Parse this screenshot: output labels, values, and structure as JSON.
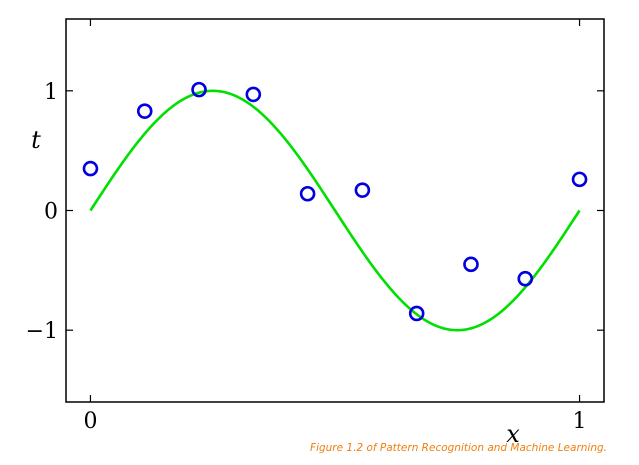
{
  "chart_data": {
    "type": "scatter",
    "title": "",
    "xlabel": "x",
    "ylabel": "t",
    "xlim": [
      -0.05,
      1.05
    ],
    "ylim": [
      -1.6,
      1.6
    ],
    "x_ticks": [
      0,
      1
    ],
    "x_tick_labels": [
      "0",
      "1"
    ],
    "y_ticks": [
      -1,
      0,
      1
    ],
    "y_tick_labels": [
      "−1",
      "0",
      "1"
    ],
    "grid": false,
    "series": [
      {
        "kind": "points",
        "marker": "open-circle",
        "color": "#0000e0",
        "x": [
          0.0,
          0.111,
          0.222,
          0.333,
          0.444,
          0.556,
          0.667,
          0.778,
          0.889,
          1.0
        ],
        "y": [
          0.35,
          0.83,
          1.01,
          0.97,
          0.14,
          0.17,
          -0.86,
          -0.45,
          -0.57,
          0.26
        ]
      },
      {
        "kind": "curve",
        "function": "sin(2πx)",
        "color": "#00e000",
        "x_range": [
          0,
          1
        ]
      }
    ]
  },
  "caption": "Figure 1.2 of Pattern Recognition and Machine Learning."
}
